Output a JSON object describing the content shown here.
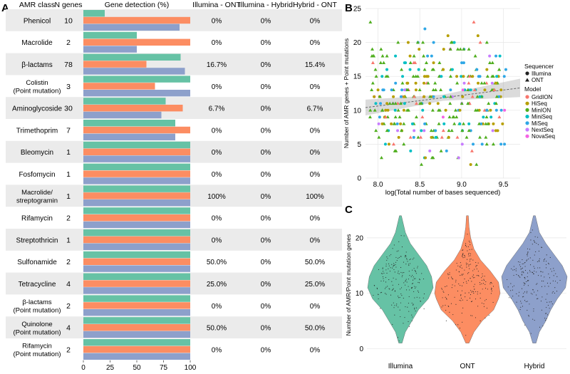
{
  "panel_labels": {
    "a": "A",
    "b": "B",
    "c": "C"
  },
  "colors": {
    "illumina": "#66c2a5",
    "ont": "#fc8d62",
    "hybrid": "#8da0cb",
    "stripe": "#ebebeb",
    "grid": "#e6e6e6",
    "GridION": "#f8766d",
    "HiSeq": "#b79f00",
    "MinION": "#4fae1e",
    "MiniSeq": "#00bfc4",
    "MiSeq": "#2fa7e6",
    "NextSeq": "#c77cff",
    "NovaSeq": "#f564e3"
  },
  "chart_data": [
    {
      "type": "bar",
      "panel": "A",
      "title": "",
      "headers": {
        "amr_class": "AMR class",
        "n_genes": "N genes",
        "gene_detection": "Gene detection (%)",
        "illumina_ont": "Illumina - ONT",
        "illumina_hybrid": "Illumina - Hybrid",
        "hybrid_ont": "Hybrid - ONT"
      },
      "xlim": [
        0,
        100
      ],
      "xticks": [
        "0",
        "25",
        "50",
        "75",
        "100"
      ],
      "rows": [
        {
          "cls": "Phenicol",
          "n": "10",
          "illumina": 20,
          "ont": 100,
          "hybrid": 90,
          "d1": "0%",
          "d2": "0%",
          "d3": "0%"
        },
        {
          "cls": "Macrolide",
          "n": "2",
          "illumina": 50,
          "ont": 100,
          "hybrid": 50,
          "d1": "0%",
          "d2": "0%",
          "d3": "0%"
        },
        {
          "cls": "β-lactams",
          "n": "78",
          "illumina": 91,
          "ont": 59,
          "hybrid": 95,
          "d1": "16.7%",
          "d2": "0%",
          "d3": "15.4%"
        },
        {
          "cls": "Colistin\n(Point mutation)",
          "n": "3",
          "illumina": 100,
          "ont": 67,
          "hybrid": 100,
          "d1": "0%",
          "d2": "0%",
          "d3": "0%"
        },
        {
          "cls": "Aminoglycoside",
          "n": "30",
          "illumina": 77,
          "ont": 93,
          "hybrid": 73,
          "d1": "6.7%",
          "d2": "0%",
          "d3": "6.7%"
        },
        {
          "cls": "Trimethoprim",
          "n": "7",
          "illumina": 86,
          "ont": 100,
          "hybrid": 86,
          "d1": "0%",
          "d2": "0%",
          "d3": "0%"
        },
        {
          "cls": "Bleomycin",
          "n": "1",
          "illumina": 100,
          "ont": 100,
          "hybrid": 100,
          "d1": "0%",
          "d2": "0%",
          "d3": "0%"
        },
        {
          "cls": "Fosfomycin",
          "n": "1",
          "illumina": 100,
          "ont": 100,
          "hybrid": 100,
          "d1": "0%",
          "d2": "0%",
          "d3": "0%"
        },
        {
          "cls": "Macrolide/\nstreptogramin",
          "n": "1",
          "illumina": 100,
          "ont": 100,
          "hybrid": 100,
          "d1": "100%",
          "d2": "0%",
          "d3": "100%"
        },
        {
          "cls": "Rifamycin",
          "n": "2",
          "illumina": 100,
          "ont": 100,
          "hybrid": 100,
          "d1": "0%",
          "d2": "0%",
          "d3": "0%"
        },
        {
          "cls": "Streptothricin",
          "n": "1",
          "illumina": 100,
          "ont": 100,
          "hybrid": 100,
          "d1": "0%",
          "d2": "0%",
          "d3": "0%"
        },
        {
          "cls": "Sulfonamide",
          "n": "2",
          "illumina": 100,
          "ont": 100,
          "hybrid": 100,
          "d1": "50.0%",
          "d2": "0%",
          "d3": "50.0%"
        },
        {
          "cls": "Tetracycline",
          "n": "4",
          "illumina": 100,
          "ont": 100,
          "hybrid": 100,
          "d1": "25.0%",
          "d2": "0%",
          "d3": "25.0%"
        },
        {
          "cls": "β-lactams\n(Point mutation)",
          "n": "2",
          "illumina": 100,
          "ont": 100,
          "hybrid": 100,
          "d1": "0%",
          "d2": "0%",
          "d3": "0%"
        },
        {
          "cls": "Quinolone\n(Point mutation)",
          "n": "4",
          "illumina": 100,
          "ont": 100,
          "hybrid": 100,
          "d1": "50.0%",
          "d2": "0%",
          "d3": "50.0%"
        },
        {
          "cls": "Rifamycin\n(Point mutation)",
          "n": "2",
          "illumina": 100,
          "ont": 100,
          "hybrid": 100,
          "d1": "0%",
          "d2": "0%",
          "d3": "0%"
        }
      ]
    },
    {
      "type": "scatter",
      "panel": "B",
      "title": "",
      "xlabel": "log(Total number of bases sequenced)",
      "ylabel": "Number of AMR genes + Point mutations",
      "xlim": [
        7.85,
        9.7
      ],
      "ylim": [
        0,
        25
      ],
      "xticks": [
        8.0,
        8.5,
        9.0,
        9.5
      ],
      "yticks": [
        0,
        5,
        10,
        15,
        20,
        25
      ],
      "trend": {
        "x0": 7.85,
        "y0": 10.4,
        "x1": 9.7,
        "y1": 13.3,
        "band": 0.9
      },
      "legend": {
        "sequencer_title": "Sequencer",
        "sequencer": [
          "Illumina",
          "ONT"
        ],
        "model_title": "Model",
        "models": [
          "GridION",
          "HiSeq",
          "MinION",
          "MiniSeq",
          "MiSeq",
          "NextSeq",
          "NovaSeq"
        ]
      },
      "points_generated": {
        "count": 360,
        "x_range": [
          7.9,
          9.62
        ],
        "y_range": [
          1,
          24
        ]
      }
    },
    {
      "type": "violin",
      "panel": "C",
      "title": "",
      "ylabel": "Number of AMR/Point mutation genes",
      "categories": [
        "Illumina",
        "ONT",
        "Hybrid"
      ],
      "ylim": [
        -2,
        25
      ],
      "yticks": [
        0,
        10,
        20
      ],
      "density": [
        [
          [
            1,
            0.05
          ],
          [
            3,
            0.15
          ],
          [
            5,
            0.35
          ],
          [
            7,
            0.55
          ],
          [
            9,
            0.85
          ],
          [
            11,
            1.0
          ],
          [
            13,
            0.95
          ],
          [
            15,
            0.8
          ],
          [
            17,
            0.55
          ],
          [
            19,
            0.3
          ],
          [
            21,
            0.15
          ],
          [
            23,
            0.07
          ],
          [
            24,
            0.03
          ]
        ],
        [
          [
            1,
            0.05
          ],
          [
            3,
            0.2
          ],
          [
            5,
            0.45
          ],
          [
            7,
            0.8
          ],
          [
            9,
            0.95
          ],
          [
            10,
            1.0
          ],
          [
            12,
            0.95
          ],
          [
            14,
            0.7
          ],
          [
            16,
            0.4
          ],
          [
            18,
            0.2
          ],
          [
            20,
            0.1
          ],
          [
            22,
            0.05
          ],
          [
            24,
            0.03
          ]
        ],
        [
          [
            1,
            0.05
          ],
          [
            3,
            0.15
          ],
          [
            5,
            0.35
          ],
          [
            7,
            0.5
          ],
          [
            9,
            0.7
          ],
          [
            11,
            0.95
          ],
          [
            13,
            1.0
          ],
          [
            15,
            0.85
          ],
          [
            17,
            0.6
          ],
          [
            19,
            0.35
          ],
          [
            21,
            0.15
          ],
          [
            23,
            0.07
          ],
          [
            24,
            0.03
          ]
        ]
      ]
    }
  ]
}
